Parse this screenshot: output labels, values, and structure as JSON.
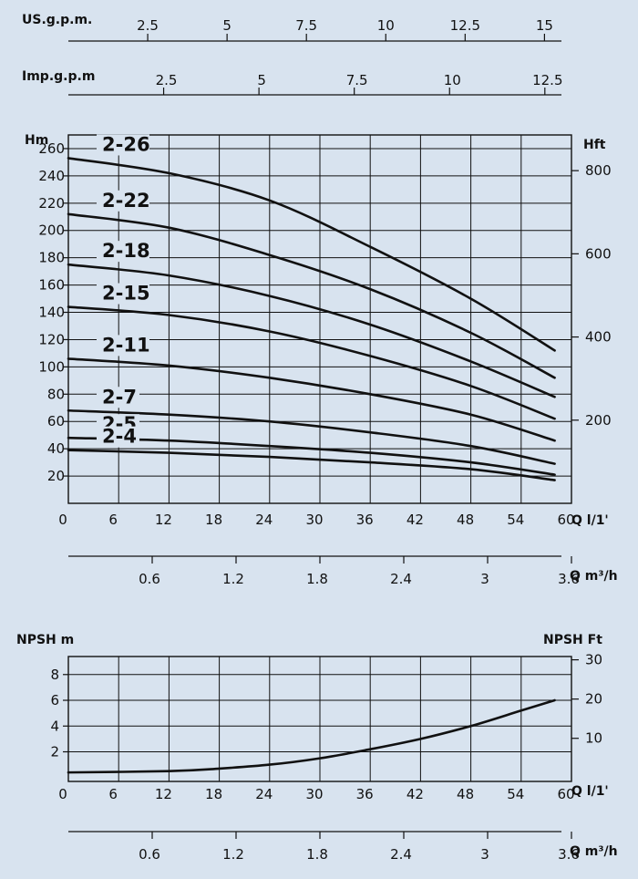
{
  "chart_data": [
    {
      "type": "line",
      "title": "",
      "scales": {
        "us_gpm": {
          "label": "US.g.p.m.",
          "ticks": [
            "2.5",
            "5",
            "7.5",
            "10",
            "12.5",
            "15"
          ],
          "values": [
            2.5,
            5,
            7.5,
            10,
            12.5,
            15
          ]
        },
        "imp_gpm": {
          "label": "Imp.g.p.m",
          "ticks": [
            "2.5",
            "5",
            "7.5",
            "10",
            "12.5"
          ],
          "values": [
            2.5,
            5,
            7.5,
            10,
            12.5
          ]
        },
        "q_m3h": {
          "label": "Q m³/h",
          "ticks": [
            "0.6",
            "1.2",
            "1.8",
            "2.4",
            "3",
            "3.6"
          ],
          "values": [
            0.6,
            1.2,
            1.8,
            2.4,
            3,
            3.6
          ]
        }
      },
      "x": {
        "label": "Q l/1'",
        "range": [
          0,
          60
        ],
        "ticks": [
          "0",
          "6",
          "12",
          "18",
          "24",
          "30",
          "36",
          "42",
          "48",
          "54",
          "60"
        ],
        "values": [
          0,
          6,
          12,
          18,
          24,
          30,
          36,
          42,
          48,
          54,
          60
        ]
      },
      "y_left": {
        "label": "Hm",
        "range": [
          0,
          270
        ],
        "ticks": [
          "20",
          "40",
          "60",
          "80",
          "100",
          "120",
          "140",
          "160",
          "180",
          "200",
          "220",
          "240",
          "260"
        ],
        "values": [
          20,
          40,
          60,
          80,
          100,
          120,
          140,
          160,
          180,
          200,
          220,
          240,
          260
        ]
      },
      "y_right": {
        "label": "Hft",
        "ticks": [
          "200",
          "400",
          "600",
          "800"
        ],
        "values": [
          200,
          400,
          600,
          800
        ]
      },
      "grid": true,
      "series": [
        {
          "name": "2-26",
          "x": [
            0,
            12,
            24,
            36,
            48,
            58
          ],
          "y": [
            253,
            242,
            222,
            188,
            150,
            112
          ]
        },
        {
          "name": "2-22",
          "x": [
            0,
            12,
            24,
            36,
            48,
            58
          ],
          "y": [
            212,
            202,
            182,
            157,
            125,
            92
          ]
        },
        {
          "name": "2-18",
          "x": [
            0,
            12,
            24,
            36,
            48,
            58
          ],
          "y": [
            175,
            167,
            152,
            131,
            104,
            78
          ]
        },
        {
          "name": "2-15",
          "x": [
            0,
            12,
            24,
            36,
            48,
            58
          ],
          "y": [
            144,
            138,
            126,
            108,
            86,
            62
          ]
        },
        {
          "name": "2-11",
          "x": [
            0,
            12,
            24,
            36,
            48,
            58
          ],
          "y": [
            106,
            101,
            92,
            80,
            65,
            46
          ]
        },
        {
          "name": "2-7",
          "x": [
            0,
            12,
            24,
            36,
            48,
            58
          ],
          "y": [
            68,
            65,
            60,
            52,
            42,
            29
          ]
        },
        {
          "name": "2-5",
          "x": [
            0,
            12,
            24,
            36,
            48,
            58
          ],
          "y": [
            48,
            46,
            42,
            37,
            30,
            21
          ]
        },
        {
          "name": "2-4",
          "x": [
            0,
            12,
            24,
            36,
            48,
            58
          ],
          "y": [
            39,
            37,
            34,
            30,
            25,
            17
          ]
        }
      ]
    },
    {
      "type": "line",
      "title": "",
      "x": {
        "label": "Q l/1'",
        "range": [
          0,
          60
        ],
        "ticks": [
          "0",
          "6",
          "12",
          "18",
          "24",
          "30",
          "36",
          "42",
          "48",
          "54",
          "60"
        ],
        "values": [
          0,
          6,
          12,
          18,
          24,
          30,
          36,
          42,
          48,
          54,
          60
        ]
      },
      "q_m3h": {
        "label": "Q m³/h",
        "ticks": [
          "0.6",
          "1.2",
          "1.8",
          "2.4",
          "3",
          "3.6"
        ],
        "values": [
          0.6,
          1.2,
          1.8,
          2.4,
          3,
          3.6
        ]
      },
      "y_left": {
        "label": "NPSH m",
        "range": [
          -0.3,
          9.4
        ],
        "ticks": [
          "2",
          "4",
          "6",
          "8"
        ],
        "values": [
          2,
          4,
          6,
          8
        ]
      },
      "y_right": {
        "label": "NPSH  Ft",
        "ticks": [
          "10",
          "20",
          "30"
        ],
        "values": [
          10,
          20,
          30
        ]
      },
      "grid": true,
      "series": [
        {
          "x": [
            0,
            12,
            18,
            24,
            30,
            36,
            42,
            48,
            54,
            58
          ],
          "y": [
            0.4,
            0.5,
            0.7,
            1.0,
            1.5,
            2.2,
            3.0,
            4.0,
            5.2,
            6.0
          ]
        }
      ]
    }
  ]
}
